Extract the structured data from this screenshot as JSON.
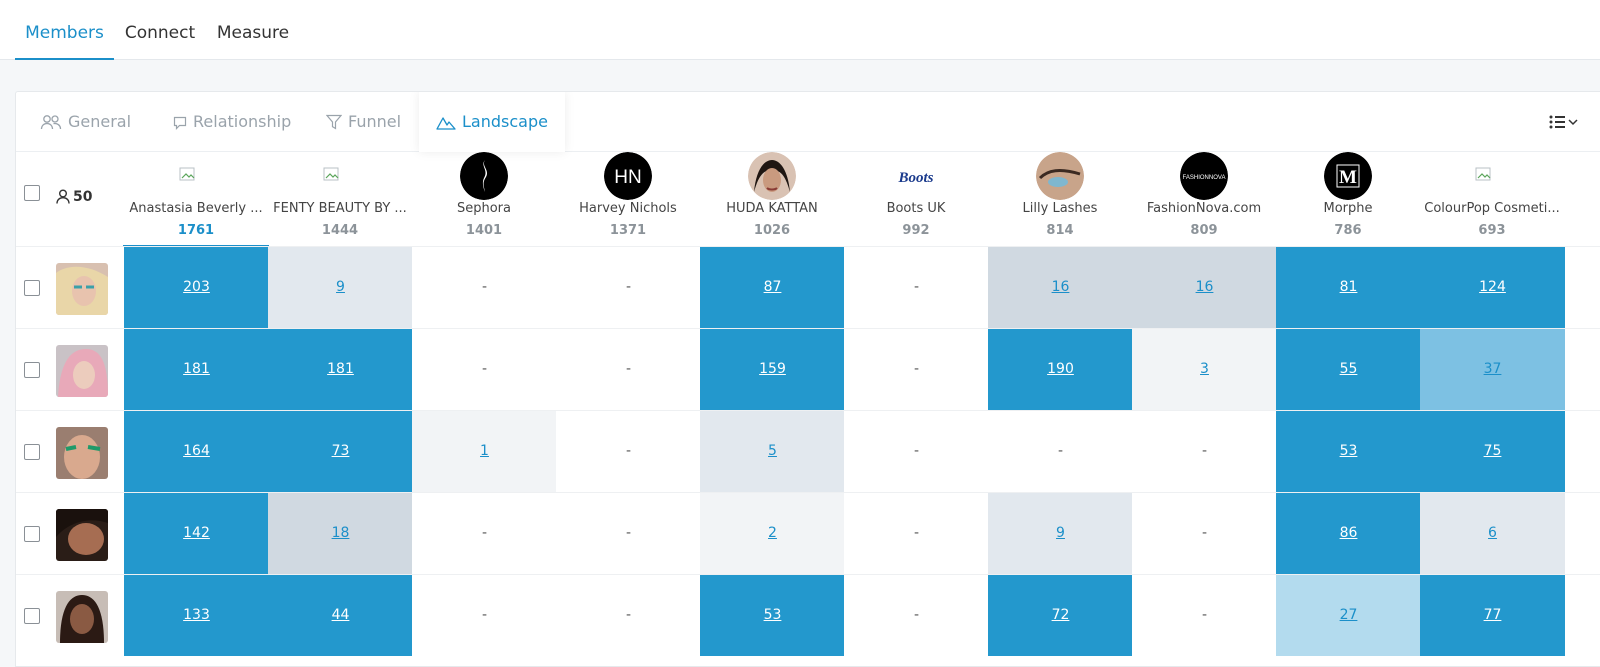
{
  "top_tabs": [
    {
      "label": "Members",
      "active": true
    },
    {
      "label": "Connect",
      "active": false
    },
    {
      "label": "Measure",
      "active": false
    }
  ],
  "sub_tabs": [
    {
      "label": "General",
      "icon": "users-icon",
      "active": false
    },
    {
      "label": "Relationship",
      "icon": "comment-icon",
      "active": false
    },
    {
      "label": "Funnel",
      "icon": "filter-icon",
      "active": false
    },
    {
      "label": "Landscape",
      "icon": "mountain-icon",
      "active": true
    }
  ],
  "member_count": "50",
  "brands": [
    {
      "name": "Anastasia Beverly ...",
      "total": "1761",
      "logo": "broken-image-icon"
    },
    {
      "name": "FENTY BEAUTY BY ...",
      "total": "1444",
      "logo": "broken-image-icon"
    },
    {
      "name": "Sephora",
      "total": "1401",
      "logo": "sephora-logo"
    },
    {
      "name": "Harvey Nichols",
      "total": "1371",
      "logo": "harvey-nichols-logo"
    },
    {
      "name": "HUDA KATTAN",
      "total": "1026",
      "logo": "huda-kattan-photo"
    },
    {
      "name": "Boots UK",
      "total": "992",
      "logo": "boots-logo"
    },
    {
      "name": "Lilly Lashes",
      "total": "814",
      "logo": "lilly-lashes-photo"
    },
    {
      "name": "FashionNova.com",
      "total": "809",
      "logo": "fashionnova-logo"
    },
    {
      "name": "Morphe",
      "total": "786",
      "logo": "morphe-logo"
    },
    {
      "name": "ColourPop Cosmeti...",
      "total": "693",
      "logo": "broken-image-icon"
    }
  ],
  "brand_logo_text": {
    "harvey_nichols": "HN",
    "boots": "Boots",
    "fashionnova": "FASHIONNOVA",
    "morphe": "M"
  },
  "rows": [
    {
      "avatar": "member-avatar-1",
      "cells": [
        "203",
        "9",
        "-",
        "-",
        "87",
        "-",
        "16",
        "16",
        "81",
        "124"
      ],
      "levels": [
        1,
        5,
        0,
        0,
        1,
        0,
        4,
        4,
        1,
        1
      ]
    },
    {
      "avatar": "member-avatar-2",
      "cells": [
        "181",
        "181",
        "-",
        "-",
        "159",
        "-",
        "190",
        "3",
        "55",
        "37"
      ],
      "levels": [
        1,
        1,
        0,
        0,
        1,
        0,
        1,
        6,
        1,
        2
      ]
    },
    {
      "avatar": "member-avatar-3",
      "cells": [
        "164",
        "73",
        "1",
        "-",
        "5",
        "-",
        "-",
        "-",
        "53",
        "75"
      ],
      "levels": [
        1,
        1,
        6,
        0,
        5,
        0,
        0,
        0,
        1,
        1
      ]
    },
    {
      "avatar": "member-avatar-4",
      "cells": [
        "142",
        "18",
        "-",
        "-",
        "2",
        "-",
        "9",
        "-",
        "86",
        "6"
      ],
      "levels": [
        1,
        4,
        0,
        0,
        6,
        0,
        5,
        0,
        1,
        5
      ]
    },
    {
      "avatar": "member-avatar-5",
      "cells": [
        "133",
        "44",
        "-",
        "-",
        "53",
        "-",
        "72",
        "-",
        "27",
        "77"
      ],
      "levels": [
        1,
        1,
        0,
        0,
        1,
        0,
        1,
        0,
        3,
        1
      ]
    }
  ],
  "colors": {
    "accent": "#1b8fc9",
    "heat_strong": "#2398cd",
    "heat_light": "#e2e8ee"
  }
}
